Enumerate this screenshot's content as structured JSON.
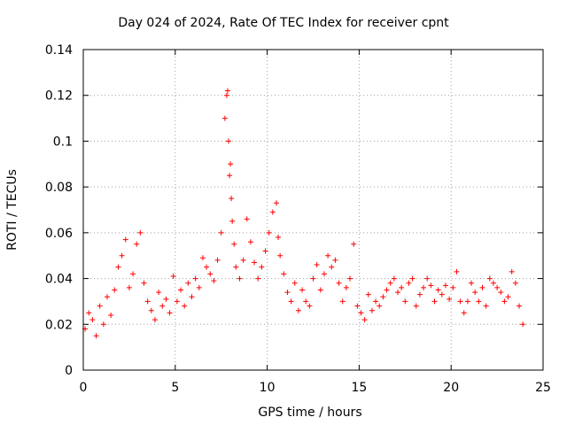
{
  "chart_data": {
    "type": "scatter",
    "title": "Day 024 of 2024, Rate Of TEC Index for receiver cpnt",
    "xlabel": "GPS time / hours",
    "ylabel": "ROTI / TECUs",
    "xlim": [
      0,
      25
    ],
    "ylim": [
      0,
      0.14
    ],
    "xticks": [
      "0",
      "5",
      "10",
      "15",
      "20",
      "25"
    ],
    "yticks": [
      "0",
      "0.02",
      "0.04",
      "0.06",
      "0.08",
      "0.1",
      "0.12",
      "0.14"
    ],
    "grid": true,
    "marker": "+",
    "series": [
      {
        "name": "ROTI",
        "color": "#ff0000",
        "x": [
          0.1,
          0.3,
          0.5,
          0.7,
          0.9,
          1.1,
          1.3,
          1.5,
          1.7,
          1.9,
          2.1,
          2.3,
          2.5,
          2.7,
          2.9,
          3.1,
          3.3,
          3.5,
          3.7,
          3.9,
          4.1,
          4.3,
          4.5,
          4.7,
          4.9,
          5.1,
          5.3,
          5.5,
          5.7,
          5.9,
          6.1,
          6.3,
          6.5,
          6.7,
          6.9,
          7.1,
          7.3,
          7.5,
          7.7,
          7.8,
          7.85,
          7.9,
          7.95,
          8.0,
          8.05,
          8.1,
          8.2,
          8.3,
          8.5,
          8.7,
          8.9,
          9.1,
          9.3,
          9.5,
          9.7,
          9.9,
          10.1,
          10.3,
          10.5,
          10.6,
          10.7,
          10.9,
          11.1,
          11.3,
          11.5,
          11.7,
          11.9,
          12.1,
          12.3,
          12.5,
          12.7,
          12.9,
          13.1,
          13.3,
          13.5,
          13.7,
          13.9,
          14.1,
          14.3,
          14.5,
          14.7,
          14.9,
          15.1,
          15.3,
          15.5,
          15.7,
          15.9,
          16.1,
          16.3,
          16.5,
          16.7,
          16.9,
          17.1,
          17.3,
          17.5,
          17.7,
          17.9,
          18.1,
          18.3,
          18.5,
          18.7,
          18.9,
          19.1,
          19.3,
          19.5,
          19.7,
          19.9,
          20.1,
          20.3,
          20.5,
          20.7,
          20.9,
          21.1,
          21.3,
          21.5,
          21.7,
          21.9,
          22.1,
          22.3,
          22.5,
          22.7,
          22.9,
          23.1,
          23.3,
          23.5,
          23.7,
          23.9
        ],
        "y": [
          0.018,
          0.025,
          0.022,
          0.015,
          0.028,
          0.02,
          0.032,
          0.024,
          0.035,
          0.045,
          0.05,
          0.057,
          0.036,
          0.042,
          0.055,
          0.06,
          0.038,
          0.03,
          0.026,
          0.022,
          0.034,
          0.028,
          0.031,
          0.025,
          0.041,
          0.03,
          0.035,
          0.028,
          0.038,
          0.032,
          0.04,
          0.036,
          0.049,
          0.045,
          0.042,
          0.039,
          0.048,
          0.06,
          0.11,
          0.12,
          0.122,
          0.1,
          0.085,
          0.09,
          0.075,
          0.065,
          0.055,
          0.045,
          0.04,
          0.048,
          0.066,
          0.056,
          0.047,
          0.04,
          0.045,
          0.052,
          0.06,
          0.069,
          0.073,
          0.058,
          0.05,
          0.042,
          0.034,
          0.03,
          0.038,
          0.026,
          0.035,
          0.03,
          0.028,
          0.04,
          0.046,
          0.035,
          0.042,
          0.05,
          0.045,
          0.048,
          0.038,
          0.03,
          0.036,
          0.04,
          0.055,
          0.028,
          0.025,
          0.022,
          0.033,
          0.026,
          0.03,
          0.028,
          0.032,
          0.035,
          0.038,
          0.04,
          0.034,
          0.036,
          0.03,
          0.038,
          0.04,
          0.028,
          0.033,
          0.036,
          0.04,
          0.037,
          0.03,
          0.035,
          0.033,
          0.037,
          0.031,
          0.036,
          0.043,
          0.03,
          0.025,
          0.03,
          0.038,
          0.034,
          0.03,
          0.036,
          0.028,
          0.04,
          0.038,
          0.036,
          0.034,
          0.03,
          0.032,
          0.043,
          0.038,
          0.028,
          0.02
        ]
      }
    ]
  }
}
